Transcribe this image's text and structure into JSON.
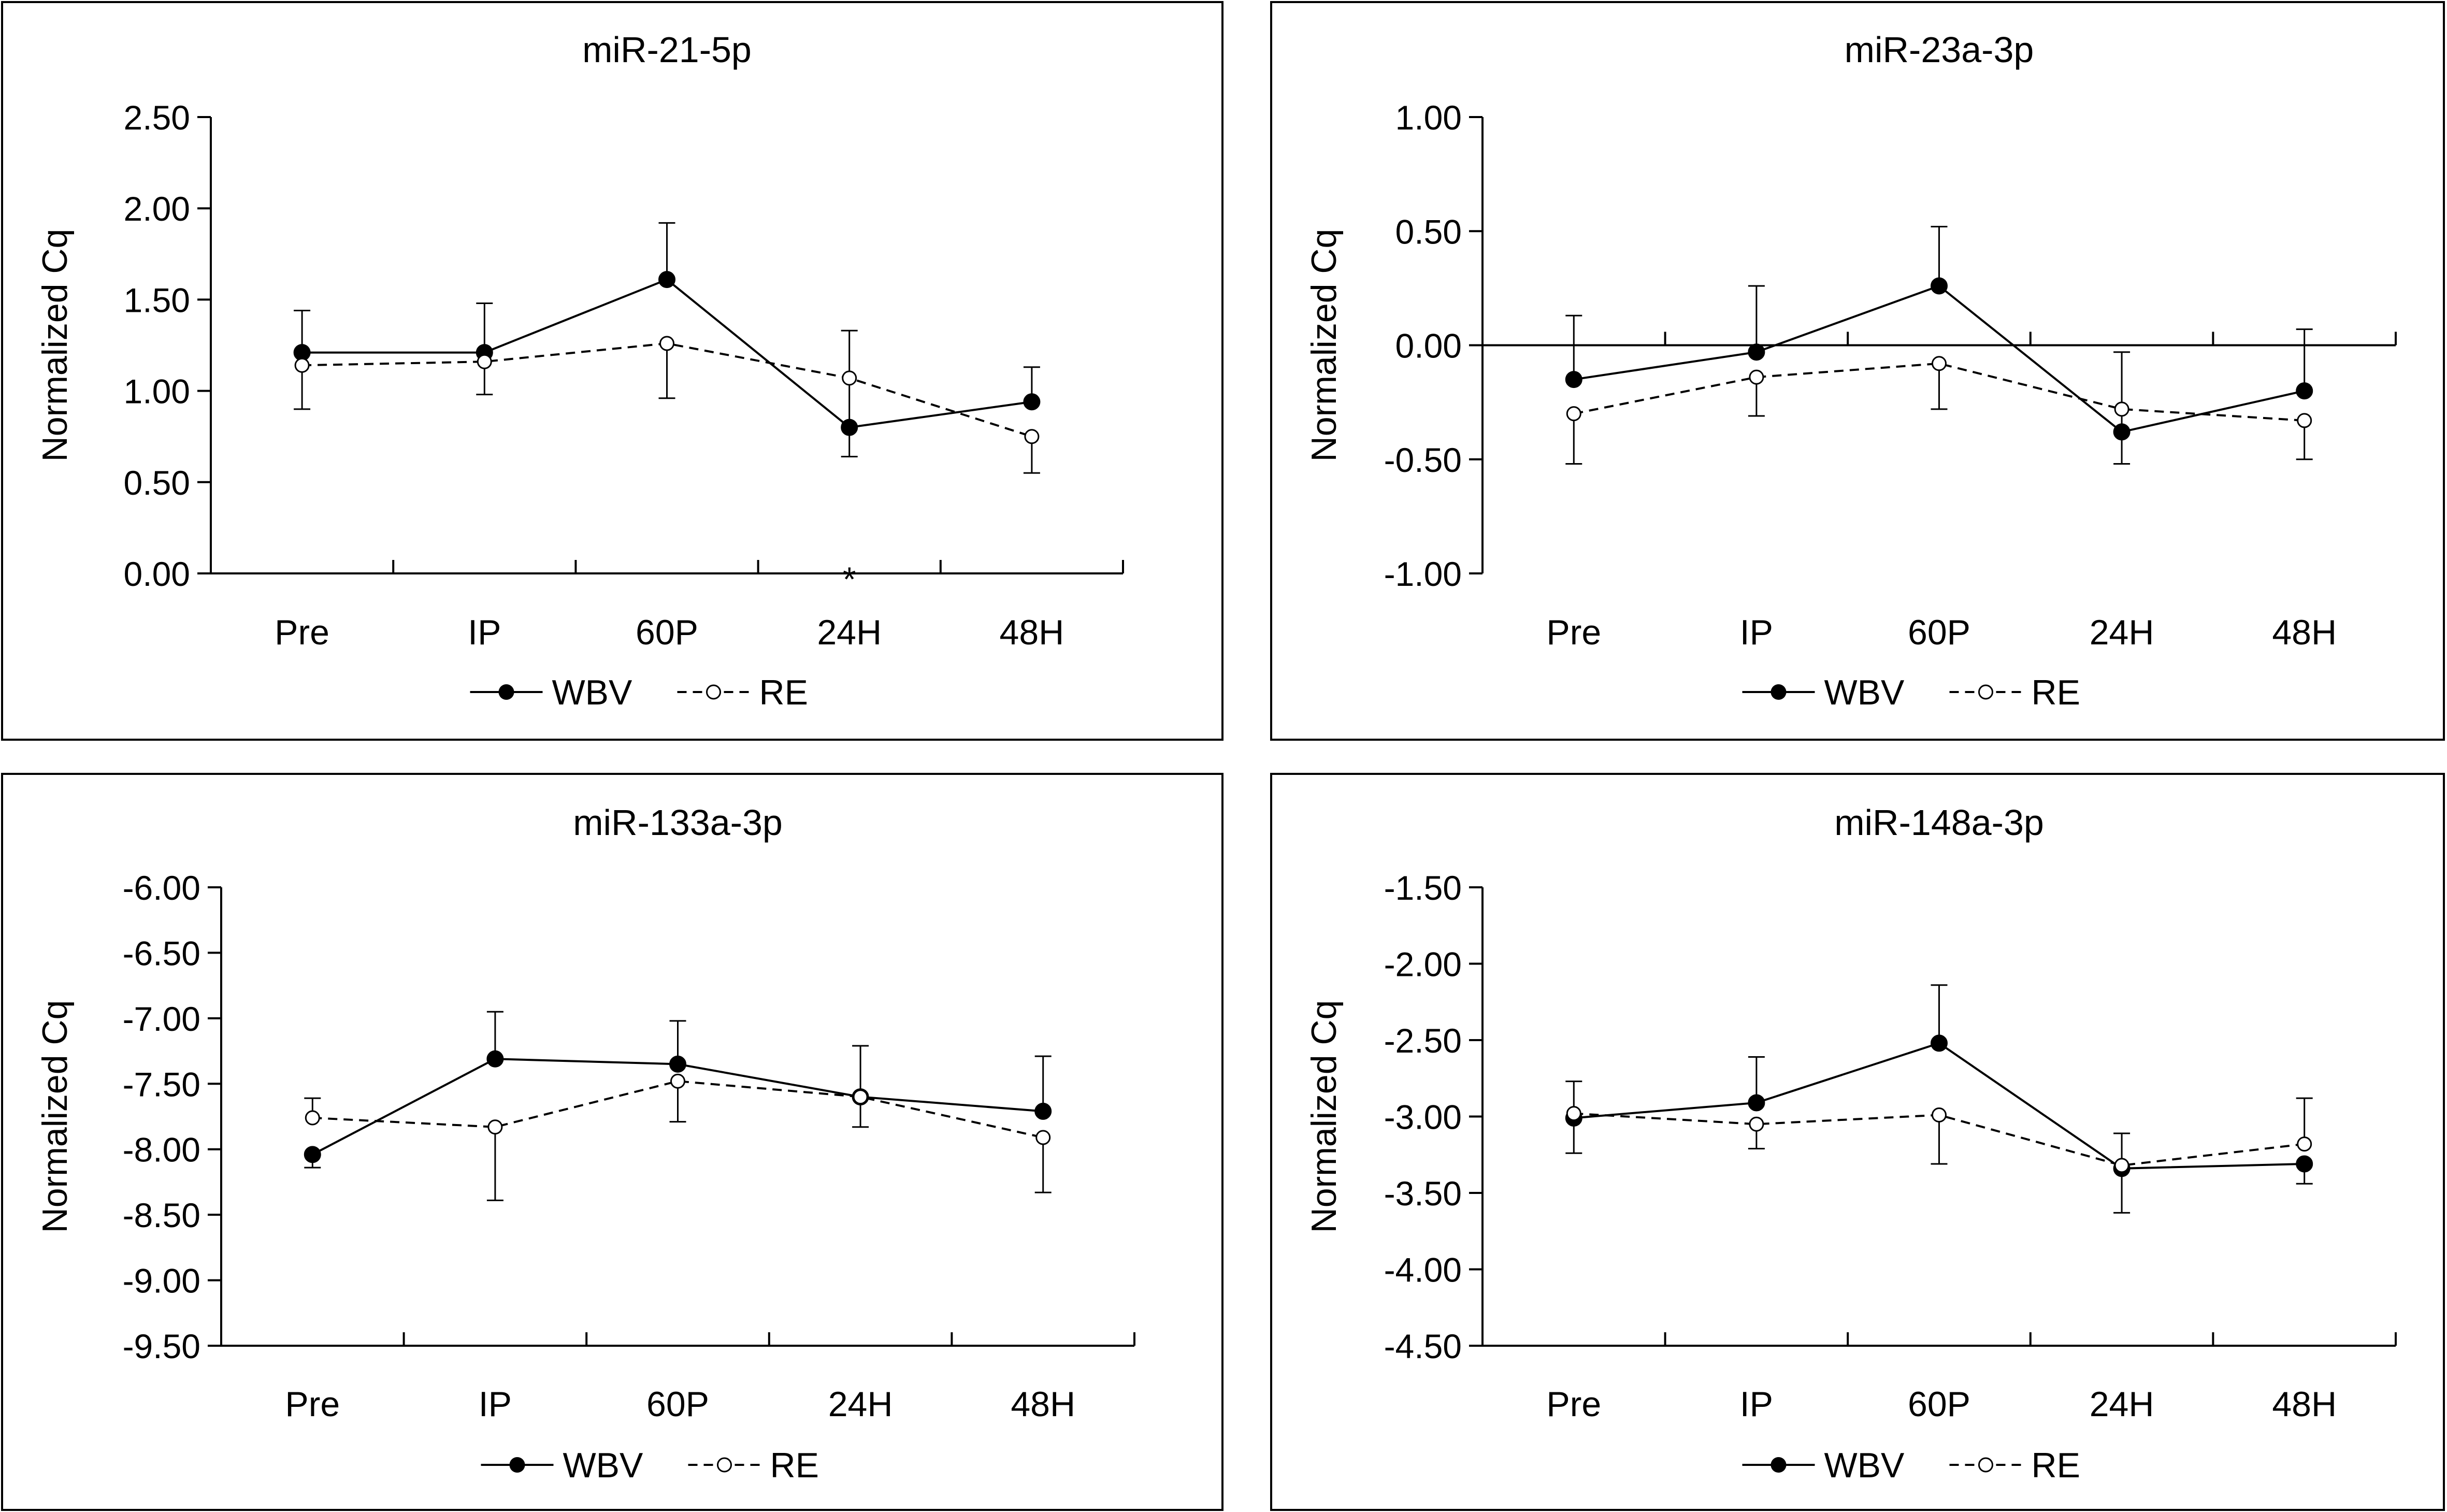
{
  "chart_data": [
    {
      "type": "line",
      "title": "miR-21-5p",
      "ylabel": "Normalized Cq",
      "xlabel": "",
      "categories": [
        "Pre",
        "IP",
        "60P",
        "24H",
        "48H"
      ],
      "ylim": [
        0.0,
        2.5
      ],
      "yticks": [
        0.0,
        0.5,
        1.0,
        1.5,
        2.0,
        2.5
      ],
      "ytick_labels": [
        "0.00",
        "0.50",
        "1.00",
        "1.50",
        "2.00",
        "2.50"
      ],
      "series": [
        {
          "name": "WBV",
          "values": [
            1.21,
            1.21,
            1.61,
            0.8,
            0.94
          ],
          "err_up": [
            0.23,
            0.27,
            0.31,
            0.53,
            0.19
          ],
          "err_down": [
            0.0,
            0.0,
            0.0,
            0.16,
            0.0
          ],
          "style": "solid",
          "marker": "filled"
        },
        {
          "name": "RE",
          "values": [
            1.14,
            1.16,
            1.26,
            1.07,
            0.75
          ],
          "err_up": [
            0.0,
            0.0,
            0.0,
            0.0,
            0.0
          ],
          "err_down": [
            0.24,
            0.18,
            0.3,
            0.0,
            0.2
          ],
          "style": "dashed",
          "marker": "open"
        }
      ],
      "annotations": [
        {
          "text": "*",
          "x": "24H",
          "y": 0.0
        }
      ],
      "legend": {
        "position": "bottom",
        "labels": [
          "WBV",
          "RE"
        ]
      }
    },
    {
      "type": "line",
      "title": "miR-23a-3p",
      "ylabel": "Normalized Cq",
      "xlabel": "",
      "categories": [
        "Pre",
        "IP",
        "60P",
        "24H",
        "48H"
      ],
      "ylim": [
        -1.0,
        1.0
      ],
      "yticks": [
        -1.0,
        -0.5,
        0.0,
        0.5,
        1.0
      ],
      "ytick_labels": [
        "-1.00",
        "-0.50",
        "0.00",
        "0.50",
        "1.00"
      ],
      "series": [
        {
          "name": "WBV",
          "values": [
            -0.15,
            -0.03,
            0.26,
            -0.38,
            -0.2
          ],
          "err_up": [
            0.28,
            0.29,
            0.26,
            0.35,
            0.27
          ],
          "err_down": [
            0.0,
            0.0,
            0.0,
            0.14,
            0.0
          ],
          "style": "solid",
          "marker": "filled"
        },
        {
          "name": "RE",
          "values": [
            -0.3,
            -0.14,
            -0.08,
            -0.28,
            -0.33
          ],
          "err_up": [
            0.0,
            0.0,
            0.0,
            0.0,
            0.0
          ],
          "err_down": [
            0.22,
            0.17,
            0.2,
            0.0,
            0.17
          ],
          "style": "dashed",
          "marker": "open"
        }
      ],
      "legend": {
        "position": "bottom",
        "labels": [
          "WBV",
          "RE"
        ]
      }
    },
    {
      "type": "line",
      "title": "miR-133a-3p",
      "ylabel": "Normalized Cq",
      "xlabel": "",
      "categories": [
        "Pre",
        "IP",
        "60P",
        "24H",
        "48H"
      ],
      "ylim": [
        -9.5,
        -6.0
      ],
      "yticks": [
        -9.5,
        -9.0,
        -8.5,
        -8.0,
        -7.5,
        -7.0,
        -6.5,
        -6.0
      ],
      "ytick_labels": [
        "-9.50",
        "-9.00",
        "-8.50",
        "-8.00",
        "-7.50",
        "-7.00",
        "-6.50",
        "-6.00"
      ],
      "series": [
        {
          "name": "WBV",
          "values": [
            -8.04,
            -7.31,
            -7.35,
            -7.6,
            -7.71
          ],
          "err_up": [
            0.0,
            0.36,
            0.33,
            0.39,
            0.42
          ],
          "err_down": [
            0.1,
            0.0,
            0.0,
            0.0,
            0.0
          ],
          "style": "solid",
          "marker": "filled"
        },
        {
          "name": "RE",
          "values": [
            -7.76,
            -7.83,
            -7.48,
            -7.6,
            -7.91
          ],
          "err_up": [
            0.15,
            0.0,
            0.0,
            0.0,
            0.0
          ],
          "err_down": [
            0.0,
            0.56,
            0.31,
            0.23,
            0.42
          ],
          "style": "dashed",
          "marker": "open"
        }
      ],
      "legend": {
        "position": "bottom",
        "labels": [
          "WBV",
          "RE"
        ]
      }
    },
    {
      "type": "line",
      "title": "miR-148a-3p",
      "ylabel": "Normalized Cq",
      "xlabel": "",
      "categories": [
        "Pre",
        "IP",
        "60P",
        "24H",
        "48H"
      ],
      "ylim": [
        -4.5,
        -1.5
      ],
      "yticks": [
        -4.5,
        -4.0,
        -3.5,
        -3.0,
        -2.5,
        -2.0,
        -1.5
      ],
      "ytick_labels": [
        "-4.50",
        "-4.00",
        "-3.50",
        "-3.00",
        "-2.50",
        "-2.00",
        "-1.50"
      ],
      "series": [
        {
          "name": "WBV",
          "values": [
            -3.01,
            -2.91,
            -2.52,
            -3.34,
            -3.31
          ],
          "err_up": [
            0.0,
            0.3,
            0.38,
            0.23,
            0.0
          ],
          "err_down": [
            0.23,
            0.0,
            0.0,
            0.29,
            0.13
          ],
          "style": "solid",
          "marker": "filled"
        },
        {
          "name": "RE",
          "values": [
            -2.98,
            -3.05,
            -2.99,
            -3.32,
            -3.18
          ],
          "err_up": [
            0.21,
            0.0,
            0.0,
            0.0,
            0.3
          ],
          "err_down": [
            0.0,
            0.16,
            0.32,
            0.0,
            0.0
          ],
          "style": "dashed",
          "marker": "open"
        }
      ],
      "legend": {
        "position": "bottom",
        "labels": [
          "WBV",
          "RE"
        ]
      }
    }
  ]
}
